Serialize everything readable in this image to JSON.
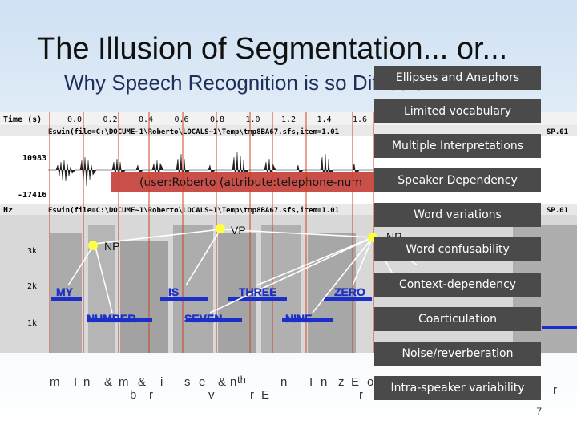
{
  "slide": {
    "title": "The Illusion of Segmentation... or...",
    "subtitle": "Why Speech Recognition is so Difficult",
    "page_number": "7"
  },
  "waveform": {
    "time_label": "Time (s)",
    "time_ticks": [
      "0.0",
      "0.2",
      "0.4",
      "0.6",
      "0.8",
      "1.0",
      "1.2",
      "1.4",
      "1.6"
    ],
    "file_label_1": "Eswin(file=C:\\DOCUME~1\\Roberto\\LOCALS~1\\Temp\\tmp8BA67.sfs,item=1.01",
    "amp_max": "10983",
    "amp_min": "-17416",
    "hz_label": "Hz",
    "file_label_2": "Eswin(file=C:\\DOCUME~1\\Roberto\\LOCALS~1\\Temp\\tmp8BA67.sfs,item=1.01",
    "sp_label_1": "SP.01",
    "sp_label_2": "SP.01",
    "freq_ticks": [
      "3k",
      "2k",
      "1k"
    ],
    "user_banner": "(user:Roberto (attribute:telephone-num"
  },
  "parse": {
    "vp": "VP",
    "np1": "NP",
    "np2": "NP",
    "words_upper": [
      "MY",
      "IS",
      "THREE",
      "ZERO"
    ],
    "words_lower": [
      "NUMBER",
      "SEVEN",
      "NINE"
    ]
  },
  "phones": [
    "m",
    "I",
    "n",
    "&",
    "m",
    "&",
    "b",
    "r",
    "i",
    "s",
    "e",
    "v",
    "&",
    "n",
    "th",
    "r",
    "E",
    "n",
    "I",
    "n",
    "z",
    "E",
    "o",
    "r",
    "r"
  ],
  "callouts": [
    "Ellipses and Anaphors",
    "Limited vocabulary",
    "Multiple Interpretations",
    "Speaker Dependency",
    "Word variations",
    "Word confusability",
    "Context-dependency",
    "Coarticulation",
    "Noise/reverberation",
    "Intra-speaker variability"
  ],
  "colors": {
    "callout_bg": "#4a4a4a",
    "banner_bg": "#c9504a",
    "word_blue": "#1c2fc8",
    "node_yellow": "#ffff44",
    "boundary_red": "#d04020"
  }
}
